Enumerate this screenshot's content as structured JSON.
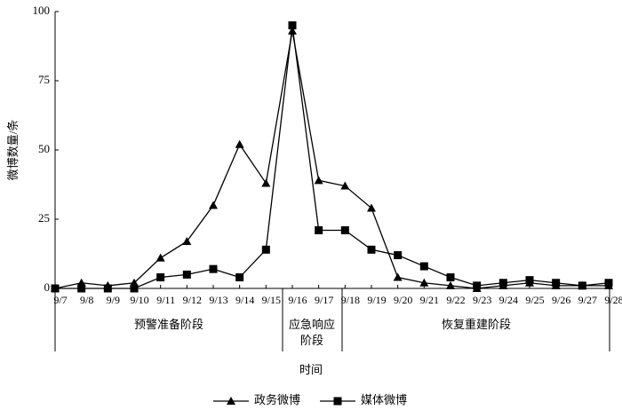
{
  "chart_data": {
    "type": "line",
    "y_label": "微博数量/条",
    "x_label": "时间",
    "categories": [
      "9/7",
      "9/8",
      "9/9",
      "9/10",
      "9/11",
      "9/12",
      "9/13",
      "9/14",
      "9/15",
      "9/16",
      "9/17",
      "9/18",
      "9/19",
      "9/20",
      "9/21",
      "9/22",
      "9/23",
      "9/24",
      "9/25",
      "9/26",
      "9/27",
      "9/28"
    ],
    "series": [
      {
        "name": "政务微博",
        "color": "#000000",
        "marker": "triangle",
        "values": [
          0,
          2,
          1,
          2,
          11,
          17,
          30,
          52,
          38,
          93,
          39,
          37,
          29,
          4,
          2,
          1,
          0,
          1,
          2,
          1,
          1,
          1
        ]
      },
      {
        "name": "媒体微博",
        "color": "#000000",
        "marker": "square",
        "values": [
          0,
          0,
          0,
          0,
          4,
          5,
          7,
          4,
          14,
          95,
          21,
          21,
          14,
          12,
          8,
          4,
          1,
          2,
          3,
          2,
          1,
          2
        ]
      }
    ],
    "phases": [
      {
        "lines": [
          "预警准备阶段"
        ]
      },
      {
        "lines": [
          "应急响应",
          "阶段"
        ]
      },
      {
        "lines": [
          "恢复重建阶段"
        ]
      }
    ],
    "ylim": [
      0,
      100
    ],
    "yticks": [
      0,
      25,
      50,
      75,
      100
    ]
  }
}
